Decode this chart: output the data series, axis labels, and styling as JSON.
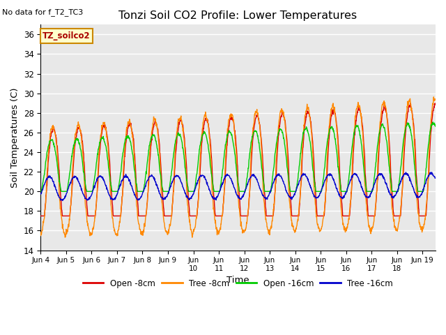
{
  "title": "Tonzi Soil CO2 Profile: Lower Temperatures",
  "annotation": "No data for f_T2_TC3",
  "legend_box_label": "TZ_soilco2",
  "xlabel": "Time",
  "ylabel": "Soil Temperatures (C)",
  "ylim": [
    14,
    37
  ],
  "yticks": [
    14,
    16,
    18,
    20,
    22,
    24,
    26,
    28,
    30,
    32,
    34,
    36
  ],
  "bg_color": "#ffffff",
  "plot_bg_color": "#e8e8e8",
  "grid_color": "#ffffff",
  "line_colors": {
    "open8": "#dd0000",
    "tree8": "#ff8800",
    "open16": "#00cc00",
    "tree16": "#0000cc"
  },
  "line_labels": [
    "Open -8cm",
    "Tree -8cm",
    "Open -16cm",
    "Tree -16cm"
  ],
  "n_days": 15.5,
  "samples_per_day": 96
}
